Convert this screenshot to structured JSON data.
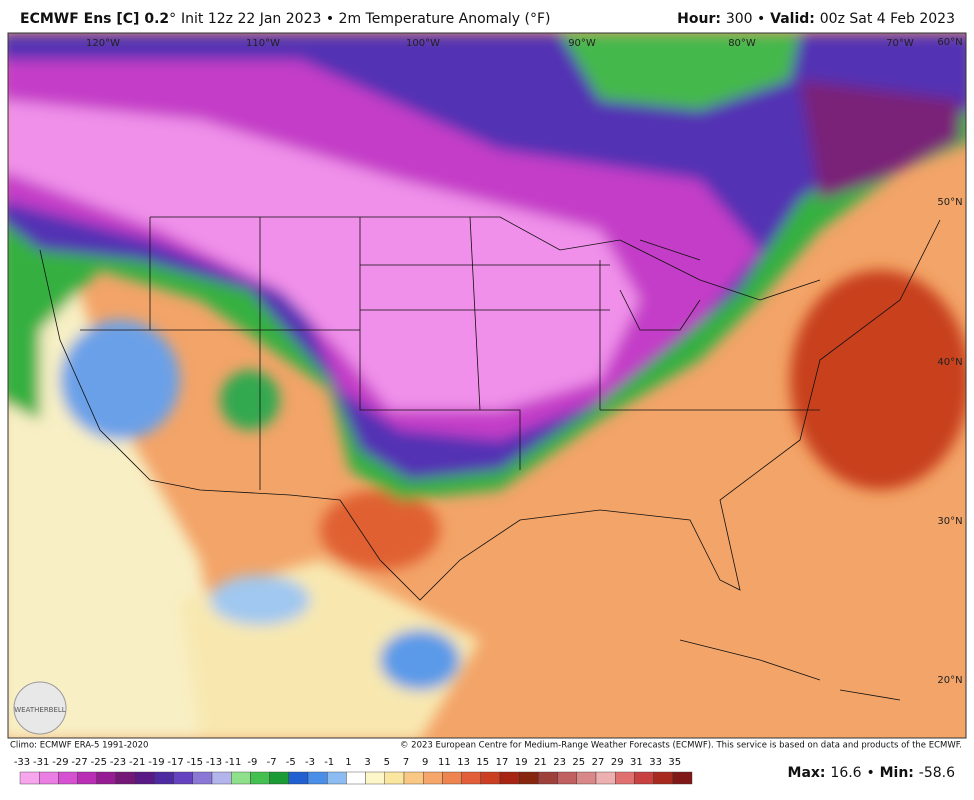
{
  "header": {
    "left_bold": "ECMWF Ens [C] 0.2",
    "left_degree": "°",
    "left_rest": "Init 12z 22 Jan 2023 • 2m Temperature Anomaly (°F)",
    "hour_label": "Hour:",
    "hour_value": "300 •",
    "valid_label": "Valid:",
    "valid_value": "00z Sat 4 Feb 2023"
  },
  "map": {
    "lon_labels": [
      "120°W",
      "110°W",
      "100°W",
      "90°W",
      "80°W",
      "70°W"
    ],
    "lat_labels": [
      "60°N",
      "50°N",
      "40°N",
      "30°N",
      "20°N"
    ],
    "logo": "WEATHERBELL"
  },
  "footer": {
    "climo": "Climo: ECMWF ERA-5 1991-2020",
    "copyright": "© 2023 European Centre for Medium-Range Weather Forecasts (ECMWF). This service is based on data and products of the ECMWF.",
    "max_label": "Max:",
    "max_value": 16.6,
    "separator": "•",
    "min_label": "Min:",
    "min_value": -58.6
  },
  "colorbar": {
    "ticks": [
      -33,
      -31,
      -29,
      -27,
      -25,
      -23,
      -21,
      -19,
      -17,
      -15,
      -13,
      -11,
      -9,
      -7,
      -5,
      -3,
      -1,
      1,
      3,
      5,
      7,
      9,
      11,
      13,
      15,
      17,
      19,
      21,
      23,
      25,
      27,
      29,
      31,
      33,
      35
    ],
    "colors": [
      "#f7a6ee",
      "#ea7ee2",
      "#d650d2",
      "#b82eb4",
      "#961c94",
      "#741878",
      "#5a1a86",
      "#4e2aa2",
      "#6442c0",
      "#8a78d6",
      "#b3b4ec",
      "#8ee08a",
      "#44c050",
      "#1c9a36",
      "#2060d0",
      "#4a8ee8",
      "#8cbcf2",
      "#ffffff",
      "#fdf6c8",
      "#fbe6a0",
      "#f9c884",
      "#f6a66a",
      "#ee8450",
      "#e25e38",
      "#cc3e22",
      "#a82412",
      "#86260e",
      "#a0403a",
      "#c06060",
      "#d88888",
      "#ecb0b0",
      "#e07070",
      "#c84040",
      "#a82a1e",
      "#801818"
    ]
  }
}
